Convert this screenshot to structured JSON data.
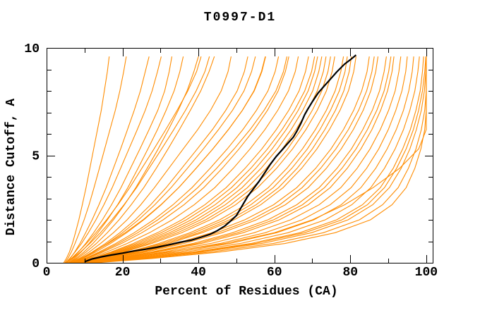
{
  "chart_data": {
    "type": "line",
    "title": "T0997-D1",
    "xlabel": "Percent of Residues (CA)",
    "ylabel": "Distance Cutoff, A",
    "xlim": [
      0,
      101.7
    ],
    "ylim": [
      0,
      10
    ],
    "x_major_ticks": [
      0,
      20,
      40,
      60,
      80,
      100
    ],
    "x_tick_labels": [
      "0",
      "20",
      "40",
      "60",
      "80",
      "100"
    ],
    "x_minor_ticks": [
      10,
      30,
      50,
      70,
      90
    ],
    "y_major_ticks": [
      0,
      5,
      10
    ],
    "y_tick_labels": [
      "0",
      "5",
      "10"
    ],
    "y_minor_ticks": [
      1,
      2,
      3,
      4,
      6,
      7,
      8,
      9
    ],
    "grid": false,
    "legend": null,
    "colors": {
      "models": "#FF8C00",
      "highlight": "#000000",
      "axis": "#000000",
      "background": "#FFFFFF"
    },
    "y_levels": [
      0,
      0.2,
      0.5,
      0.9,
      1.4,
      2.0,
      2.7,
      3.5,
      4.4,
      5.3,
      6.2,
      7.1,
      8.0,
      8.9,
      9.6
    ],
    "series": [
      {
        "name": "model",
        "xs": [
          4.5,
          5.2,
          6.0,
          6.8,
          7.6,
          8.5,
          9.4,
          10.4,
          11.4,
          12.4,
          13.4,
          14.4,
          15.2,
          16.0,
          16.5
        ]
      },
      {
        "name": "model",
        "xs": [
          4.8,
          5.6,
          6.5,
          7.5,
          8.6,
          9.9,
          11.2,
          12.5,
          13.9,
          15.3,
          16.7,
          18.1,
          19.3,
          20.3,
          21.0
        ]
      },
      {
        "name": "model",
        "xs": [
          5.2,
          6.2,
          7.4,
          8.8,
          10.3,
          12.0,
          13.8,
          15.7,
          17.6,
          19.5,
          21.3,
          23.1,
          24.7,
          26.0,
          27.0
        ]
      },
      {
        "name": "model",
        "xs": [
          5.0,
          6.1,
          7.5,
          9.2,
          11.0,
          13.0,
          15.1,
          17.3,
          19.5,
          21.7,
          23.9,
          26.0,
          27.8,
          29.2,
          30.2
        ]
      },
      {
        "name": "model",
        "xs": [
          5.5,
          6.8,
          8.4,
          10.3,
          12.4,
          14.7,
          17.1,
          19.6,
          22.1,
          24.6,
          27.0,
          29.3,
          31.1,
          32.3,
          33.0
        ]
      },
      {
        "name": "model",
        "xs": [
          5.8,
          7.3,
          9.1,
          11.2,
          13.5,
          16.0,
          18.7,
          21.4,
          24.1,
          26.7,
          29.2,
          31.5,
          33.6,
          35.1,
          36.0
        ]
      },
      {
        "name": "model",
        "xs": [
          6.0,
          7.7,
          9.8,
          12.2,
          14.8,
          17.6,
          20.5,
          23.5,
          26.5,
          29.4,
          32.1,
          34.7,
          37.0,
          38.8,
          40.0
        ]
      },
      {
        "name": "model",
        "xs": [
          6.2,
          8.1,
          10.4,
          13.1,
          16.0,
          19.1,
          22.3,
          25.6,
          28.9,
          32.0,
          35.0,
          37.9,
          40.6,
          42.8,
          44.2
        ]
      },
      {
        "name": "model",
        "xs": [
          5.4,
          6.9,
          8.9,
          11.4,
          14.2,
          17.2,
          20.4,
          23.7,
          27.0,
          30.3,
          33.5,
          36.6,
          39.4,
          41.7,
          42.9
        ]
      },
      {
        "name": "model",
        "xs": [
          5.0,
          6.5,
          8.3,
          10.5,
          13.0,
          15.8,
          18.8,
          21.9,
          25.1,
          28.3,
          31.4,
          34.4,
          37.2,
          39.5,
          40.7
        ]
      },
      {
        "name": "model",
        "xs": [
          6.5,
          8.6,
          11.2,
          14.2,
          17.6,
          21.2,
          24.8,
          28.4,
          32.2,
          36.0,
          39.8,
          43.2,
          46.0,
          47.8,
          48.6
        ]
      },
      {
        "name": "model",
        "xs": [
          6.8,
          9.1,
          12.0,
          15.5,
          19.3,
          23.3,
          27.4,
          31.5,
          35.6,
          39.7,
          43.7,
          47.2,
          50.2,
          52.1,
          53.0
        ]
      },
      {
        "name": "model",
        "xs": [
          7.0,
          9.6,
          12.9,
          16.8,
          21.1,
          25.6,
          30.2,
          34.8,
          39.4,
          43.8,
          47.9,
          51.6,
          54.6,
          56.6,
          57.6
        ]
      },
      {
        "name": "model",
        "xs": [
          7.2,
          10.1,
          13.8,
          18.2,
          23.1,
          28.2,
          33.3,
          38.3,
          43.1,
          47.6,
          51.7,
          55.3,
          58.3,
          60.2,
          61.1
        ]
      },
      {
        "name": "model",
        "xs": [
          7.5,
          10.7,
          14.8,
          19.7,
          25.1,
          30.7,
          36.2,
          41.4,
          46.3,
          50.7,
          54.7,
          58.2,
          61.0,
          62.9,
          63.8
        ]
      },
      {
        "name": "model",
        "xs": [
          7.8,
          11.3,
          15.8,
          21.2,
          27.1,
          33.1,
          38.9,
          44.3,
          49.2,
          53.6,
          57.5,
          60.9,
          63.7,
          65.5,
          66.3
        ]
      },
      {
        "name": "model",
        "xs": [
          8.0,
          11.9,
          16.9,
          22.8,
          29.2,
          35.6,
          41.7,
          47.3,
          52.3,
          56.7,
          60.5,
          63.8,
          66.5,
          68.2,
          69.0
        ]
      },
      {
        "name": "model",
        "xs": [
          8.2,
          12.5,
          18.0,
          24.4,
          31.3,
          38.1,
          44.4,
          50.1,
          55.1,
          59.4,
          63.1,
          66.3,
          68.9,
          70.6,
          71.4
        ]
      },
      {
        "name": "model",
        "xs": [
          8.5,
          13.1,
          19.1,
          26.0,
          33.4,
          40.6,
          47.1,
          52.9,
          57.9,
          62.1,
          65.7,
          68.8,
          71.3,
          72.9,
          73.6
        ]
      },
      {
        "name": "model",
        "xs": [
          8.8,
          13.8,
          20.3,
          27.7,
          35.6,
          43.1,
          49.8,
          55.6,
          60.6,
          64.8,
          68.3,
          71.3,
          73.7,
          75.2,
          75.9
        ]
      },
      {
        "name": "model",
        "xs": [
          9.0,
          14.5,
          21.5,
          29.5,
          37.8,
          45.6,
          52.5,
          58.4,
          63.3,
          67.4,
          70.8,
          73.7,
          76.0,
          77.5,
          78.2
        ]
      },
      {
        "name": "model",
        "xs": [
          9.2,
          15.2,
          22.8,
          31.3,
          40.1,
          48.2,
          55.2,
          61.1,
          66.0,
          70.0,
          73.3,
          76.1,
          78.3,
          79.7,
          80.3
        ]
      },
      {
        "name": "model",
        "xs": [
          6.8,
          9.3,
          12.4,
          16.0,
          20.0,
          24.2,
          28.5,
          32.8,
          37.1,
          41.3,
          45.3,
          49.0,
          52.0,
          54.0,
          55.0
        ]
      },
      {
        "name": "model",
        "xs": [
          7.3,
          10.4,
          14.3,
          18.9,
          24.0,
          29.3,
          34.6,
          39.8,
          44.8,
          49.4,
          53.6,
          57.3,
          60.4,
          62.4,
          63.3
        ]
      },
      {
        "name": "model",
        "xs": [
          8.1,
          12.2,
          17.4,
          23.6,
          30.2,
          36.8,
          43.0,
          48.7,
          53.8,
          58.2,
          62.0,
          65.3,
          68.0,
          69.8,
          70.6
        ]
      },
      {
        "name": "model",
        "xs": [
          8.4,
          12.8,
          18.6,
          25.2,
          32.4,
          39.4,
          45.8,
          51.5,
          56.5,
          60.8,
          64.4,
          67.5,
          70.1,
          71.7,
          72.5
        ]
      },
      {
        "name": "model",
        "xs": [
          8.6,
          13.4,
          19.7,
          26.9,
          34.5,
          41.9,
          48.5,
          54.3,
          59.3,
          63.5,
          67.0,
          70.0,
          72.5,
          74.1,
          74.8
        ]
      },
      {
        "name": "model",
        "xs": [
          9.1,
          14.9,
          22.1,
          30.4,
          38.9,
          46.9,
          53.8,
          59.7,
          64.6,
          68.7,
          72.0,
          74.8,
          77.1,
          78.6,
          79.2
        ]
      },
      {
        "name": "model",
        "xs": [
          9.4,
          15.8,
          23.5,
          32.2,
          41.0,
          49.4,
          56.4,
          62.3,
          67.2,
          71.2,
          74.5,
          77.3,
          79.5,
          80.9,
          81.5
        ]
      },
      {
        "name": "model",
        "xs": [
          6.3,
          8.9,
          12.2,
          16.2,
          20.7,
          25.4,
          30.1,
          34.8,
          39.4,
          43.8,
          47.9,
          51.6,
          54.7,
          56.7,
          57.7
        ]
      },
      {
        "name": "model",
        "xs": [
          9.5,
          16.0,
          24.5,
          34.0,
          43.5,
          52.2,
          59.8,
          65.9,
          70.9,
          74.9,
          78.2,
          80.9,
          83.0,
          84.4,
          85.0
        ]
      },
      {
        "name": "model",
        "xs": [
          9.8,
          16.8,
          26.0,
          36.2,
          46.2,
          55.3,
          62.9,
          68.9,
          73.7,
          77.6,
          80.8,
          83.4,
          85.4,
          86.7,
          87.3
        ]
      },
      {
        "name": "model",
        "xs": [
          10.0,
          17.6,
          27.5,
          38.5,
          49.0,
          58.3,
          65.9,
          71.8,
          76.5,
          80.3,
          83.3,
          85.8,
          87.7,
          88.9,
          89.5
        ]
      },
      {
        "name": "model",
        "xs": [
          10.2,
          18.4,
          29.0,
          40.8,
          51.8,
          61.3,
          68.9,
          74.7,
          79.2,
          82.8,
          85.7,
          88.0,
          89.8,
          91.0,
          91.5
        ]
      },
      {
        "name": "model",
        "xs": [
          10.5,
          19.3,
          30.7,
          43.2,
          54.7,
          64.3,
          71.8,
          77.5,
          81.8,
          85.2,
          87.9,
          90.1,
          91.8,
          92.8,
          93.3
        ]
      },
      {
        "name": "model",
        "xs": [
          10.8,
          20.2,
          32.5,
          45.7,
          57.6,
          67.3,
          74.7,
          80.2,
          84.3,
          87.5,
          90.0,
          92.0,
          93.6,
          94.6,
          95.0
        ]
      },
      {
        "name": "model",
        "xs": [
          11.0,
          21.2,
          34.4,
          48.3,
          60.6,
          70.4,
          77.6,
          82.8,
          86.7,
          89.7,
          92.1,
          94.0,
          95.4,
          96.3,
          96.7
        ]
      },
      {
        "name": "model",
        "xs": [
          11.2,
          22.3,
          36.4,
          51.0,
          63.6,
          73.4,
          80.4,
          85.4,
          89.0,
          91.8,
          94.0,
          95.7,
          97.0,
          97.8,
          98.2
        ]
      },
      {
        "name": "model",
        "xs": [
          11.5,
          23.5,
          38.5,
          53.8,
          66.7,
          76.4,
          83.2,
          87.9,
          91.3,
          93.8,
          95.8,
          97.3,
          98.4,
          99.0,
          99.3
        ]
      },
      {
        "name": "model",
        "xs": [
          12.0,
          24.8,
          40.7,
          56.7,
          69.8,
          79.4,
          85.9,
          90.3,
          93.4,
          95.7,
          97.4,
          98.7,
          99.5,
          99.9,
          100.0
        ]
      },
      {
        "name": "model",
        "xs": [
          12.5,
          26.2,
          43.0,
          59.7,
          72.9,
          82.4,
          88.5,
          92.6,
          95.3,
          97.3,
          98.7,
          99.6,
          100.0,
          100.0,
          100.0
        ]
      },
      {
        "name": "model",
        "xs": [
          13.0,
          27.7,
          45.5,
          62.8,
          76.0,
          85.3,
          91.0,
          94.7,
          97.0,
          98.6,
          99.6,
          100.0,
          100.0,
          100.0,
          100.0
        ]
      },
      {
        "name": "model",
        "xs": [
          9.0,
          18.0,
          32.0,
          47.0,
          60.0,
          70.0,
          78.5,
          86.0,
          93.0,
          98.0,
          100.0,
          100.0,
          100.0,
          100.0,
          100.0
        ]
      },
      {
        "name": "model",
        "xs": [
          10.1,
          18.0,
          28.2,
          39.6,
          50.4,
          59.8,
          67.4,
          73.2,
          77.8,
          81.5,
          84.5,
          87.0,
          88.9,
          90.1,
          90.7
        ]
      },
      {
        "name": "model",
        "xs": [
          11.7,
          24.0,
          39.5,
          55.0,
          68.0,
          77.8,
          84.5,
          89.0,
          92.2,
          94.7,
          96.6,
          98.0,
          99.0,
          99.6,
          99.9
        ]
      },
      {
        "name": "model",
        "xs": [
          9.7,
          16.4,
          25.0,
          34.9,
          44.9,
          53.9,
          61.4,
          67.3,
          72.2,
          76.2,
          79.5,
          82.2,
          84.3,
          85.7,
          86.3
        ]
      }
    ],
    "highlight_series": {
      "name": "highlighted-model",
      "points": [
        [
          10.0,
          0.05
        ],
        [
          12.0,
          0.18
        ],
        [
          14.5,
          0.28
        ],
        [
          17.0,
          0.36
        ],
        [
          20.0,
          0.45
        ],
        [
          23.0,
          0.55
        ],
        [
          26.0,
          0.63
        ],
        [
          29.0,
          0.72
        ],
        [
          32.0,
          0.83
        ],
        [
          35.0,
          0.95
        ],
        [
          38.0,
          1.05
        ],
        [
          40.5,
          1.18
        ],
        [
          43.0,
          1.32
        ],
        [
          45.0,
          1.5
        ],
        [
          47.0,
          1.72
        ],
        [
          48.5,
          1.95
        ],
        [
          50.0,
          2.2
        ],
        [
          51.0,
          2.5
        ],
        [
          52.0,
          2.8
        ],
        [
          53.0,
          3.1
        ],
        [
          54.5,
          3.45
        ],
        [
          56.0,
          3.8
        ],
        [
          57.5,
          4.2
        ],
        [
          59.0,
          4.6
        ],
        [
          60.5,
          4.95
        ],
        [
          62.0,
          5.25
        ],
        [
          63.5,
          5.55
        ],
        [
          65.0,
          5.85
        ],
        [
          66.0,
          6.15
        ],
        [
          67.0,
          6.5
        ],
        [
          68.0,
          6.9
        ],
        [
          68.8,
          7.15
        ],
        [
          70.0,
          7.5
        ],
        [
          71.5,
          7.9
        ],
        [
          73.0,
          8.2
        ],
        [
          74.5,
          8.5
        ],
        [
          76.5,
          8.9
        ],
        [
          78.5,
          9.25
        ],
        [
          80.0,
          9.45
        ],
        [
          81.5,
          9.67
        ]
      ]
    }
  }
}
